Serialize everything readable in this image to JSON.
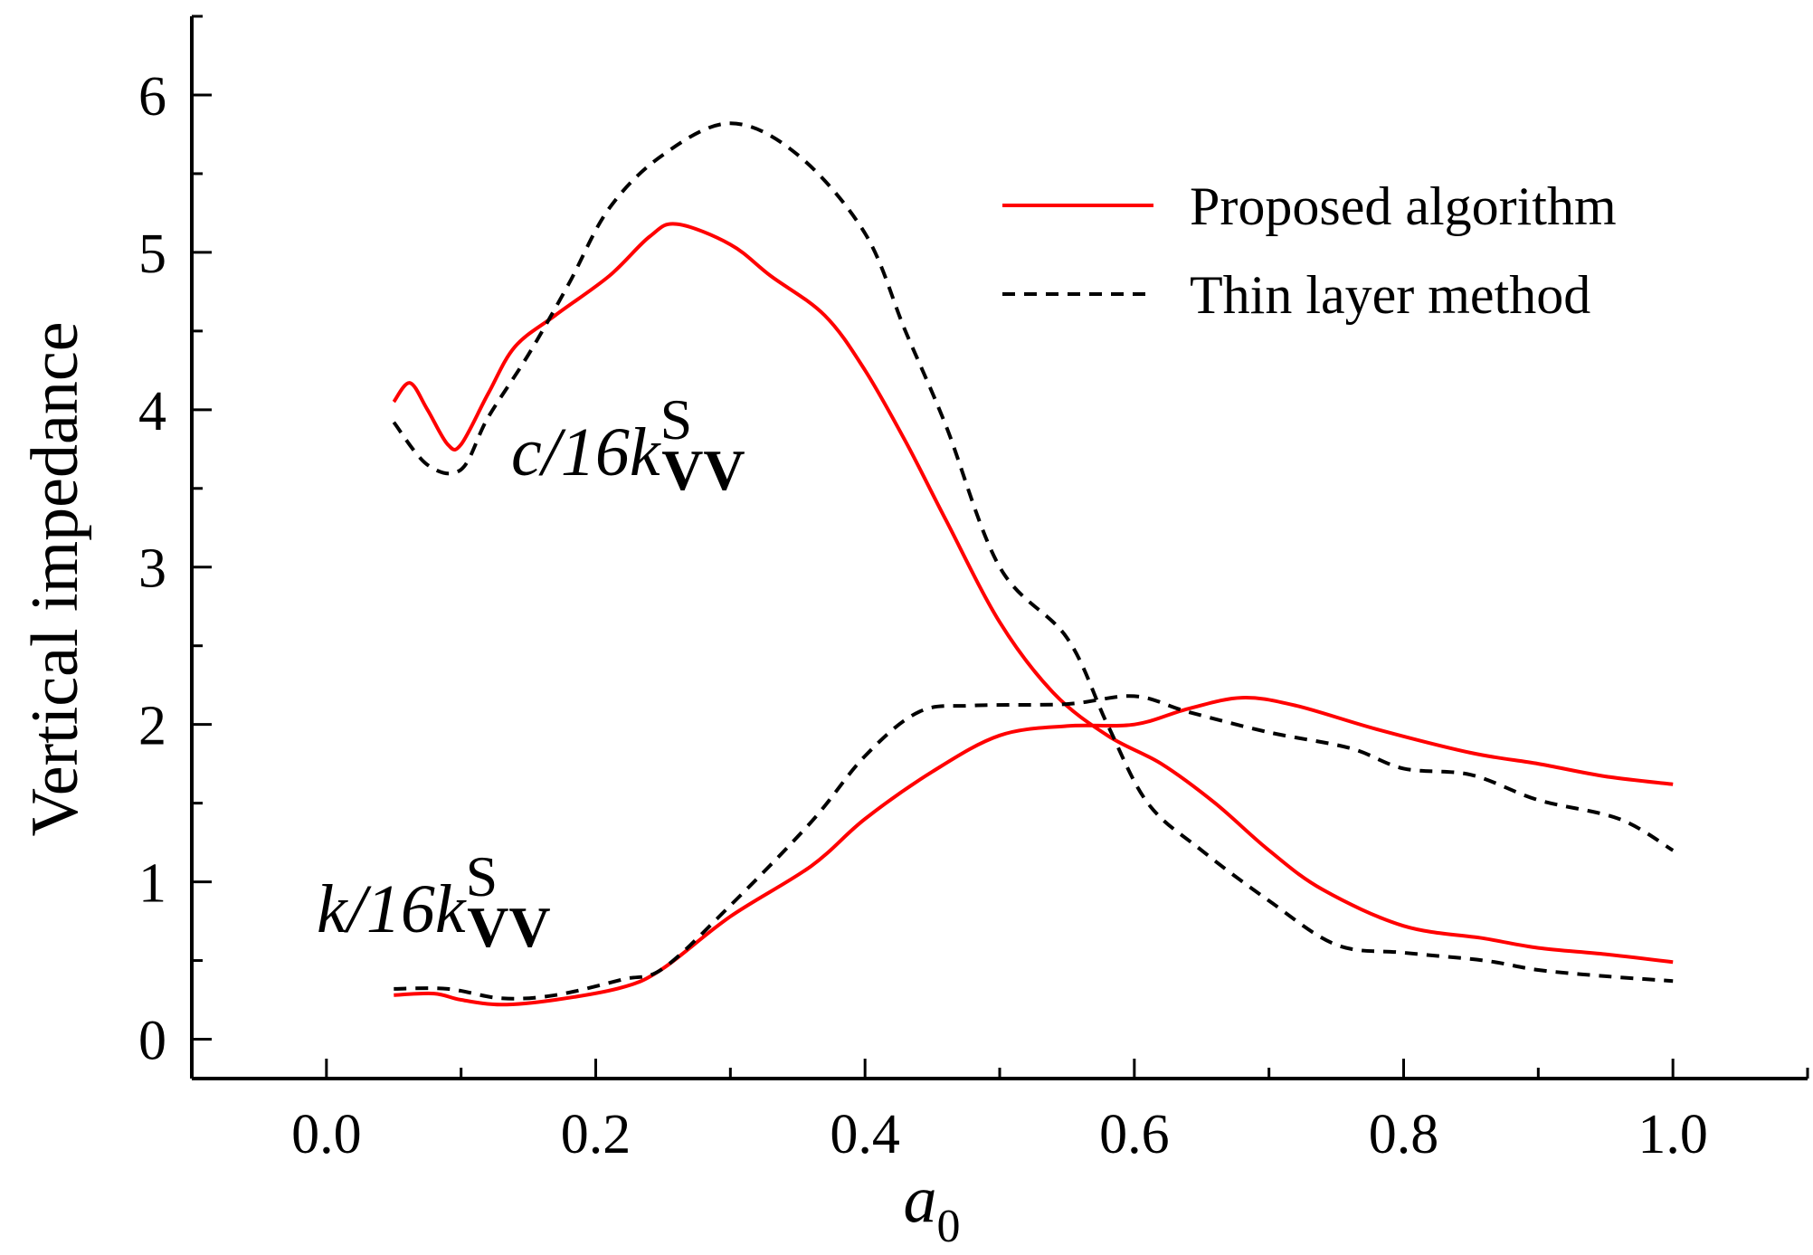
{
  "chart_data": {
    "type": "line",
    "xlabel": {
      "main": "a",
      "sub": "0"
    },
    "ylabel": "Vertical impedance",
    "xlim": [
      -0.1,
      1.1
    ],
    "ylim": [
      -0.25,
      6.5
    ],
    "xticks": [
      0.0,
      0.2,
      0.4,
      0.6,
      0.8,
      1.0
    ],
    "xtick_labels": [
      "0.0",
      "0.2",
      "0.4",
      "0.6",
      "0.8",
      "1.0"
    ],
    "yticks": [
      0,
      1,
      2,
      3,
      4,
      5,
      6
    ],
    "ytick_labels": [
      "0",
      "1",
      "2",
      "3",
      "4",
      "5",
      "6"
    ],
    "grid": false,
    "legend_position": "top-right",
    "legend": [
      {
        "label": "Proposed algorithm",
        "color": "#ff0000",
        "style": "solid"
      },
      {
        "label": "Thin layer method",
        "color": "#000000",
        "style": "dashed"
      }
    ],
    "annotations": [
      {
        "base": "c/16k",
        "sup": "S",
        "sub": "VV"
      },
      {
        "base": "k/16k",
        "sup": "S",
        "sub": "VV"
      }
    ],
    "series": [
      {
        "method": "Proposed algorithm",
        "quantity": "c/16k",
        "color": "#ff0000",
        "style": "solid",
        "x": [
          0.05,
          0.062,
          0.075,
          0.09,
          0.1,
          0.12,
          0.14,
          0.17,
          0.21,
          0.24,
          0.26,
          0.3,
          0.33,
          0.37,
          0.4,
          0.43,
          0.46,
          0.5,
          0.54,
          0.58,
          0.62,
          0.66,
          0.7,
          0.74,
          0.8,
          0.86,
          0.9,
          0.95,
          1.0
        ],
        "y": [
          4.05,
          4.17,
          4.0,
          3.78,
          3.78,
          4.1,
          4.4,
          4.6,
          4.85,
          5.1,
          5.18,
          5.05,
          4.85,
          4.6,
          4.25,
          3.8,
          3.3,
          2.65,
          2.2,
          1.93,
          1.75,
          1.5,
          1.2,
          0.95,
          0.72,
          0.64,
          0.58,
          0.54,
          0.49
        ]
      },
      {
        "method": "Thin layer method",
        "quantity": "c/16k",
        "color": "#000000",
        "style": "dashed",
        "x": [
          0.05,
          0.075,
          0.1,
          0.12,
          0.15,
          0.18,
          0.21,
          0.25,
          0.3,
          0.35,
          0.4,
          0.43,
          0.46,
          0.5,
          0.55,
          0.58,
          0.61,
          0.65,
          0.7,
          0.75,
          0.8,
          0.86,
          0.9,
          0.95,
          1.0
        ],
        "y": [
          3.92,
          3.65,
          3.62,
          3.95,
          4.35,
          4.8,
          5.28,
          5.62,
          5.82,
          5.62,
          5.12,
          4.5,
          3.9,
          3.0,
          2.55,
          2.0,
          1.5,
          1.2,
          0.88,
          0.6,
          0.55,
          0.5,
          0.44,
          0.4,
          0.37
        ]
      },
      {
        "method": "Proposed algorithm",
        "quantity": "k/16k",
        "color": "#ff0000",
        "style": "solid",
        "x": [
          0.05,
          0.08,
          0.1,
          0.13,
          0.17,
          0.22,
          0.25,
          0.3,
          0.36,
          0.4,
          0.45,
          0.5,
          0.55,
          0.6,
          0.64,
          0.68,
          0.72,
          0.78,
          0.85,
          0.9,
          0.95,
          1.0
        ],
        "y": [
          0.28,
          0.29,
          0.25,
          0.22,
          0.25,
          0.33,
          0.45,
          0.78,
          1.1,
          1.4,
          1.7,
          1.93,
          1.99,
          2.0,
          2.1,
          2.17,
          2.12,
          1.97,
          1.82,
          1.75,
          1.67,
          1.62
        ]
      },
      {
        "method": "Thin layer method",
        "quantity": "k/16k",
        "color": "#000000",
        "style": "dashed",
        "x": [
          0.05,
          0.09,
          0.13,
          0.17,
          0.22,
          0.25,
          0.3,
          0.36,
          0.4,
          0.44,
          0.48,
          0.55,
          0.6,
          0.64,
          0.7,
          0.76,
          0.8,
          0.85,
          0.9,
          0.96,
          1.0
        ],
        "y": [
          0.32,
          0.32,
          0.26,
          0.28,
          0.38,
          0.45,
          0.85,
          1.38,
          1.8,
          2.08,
          2.12,
          2.13,
          2.18,
          2.08,
          1.95,
          1.85,
          1.72,
          1.68,
          1.52,
          1.4,
          1.2
        ]
      }
    ]
  }
}
